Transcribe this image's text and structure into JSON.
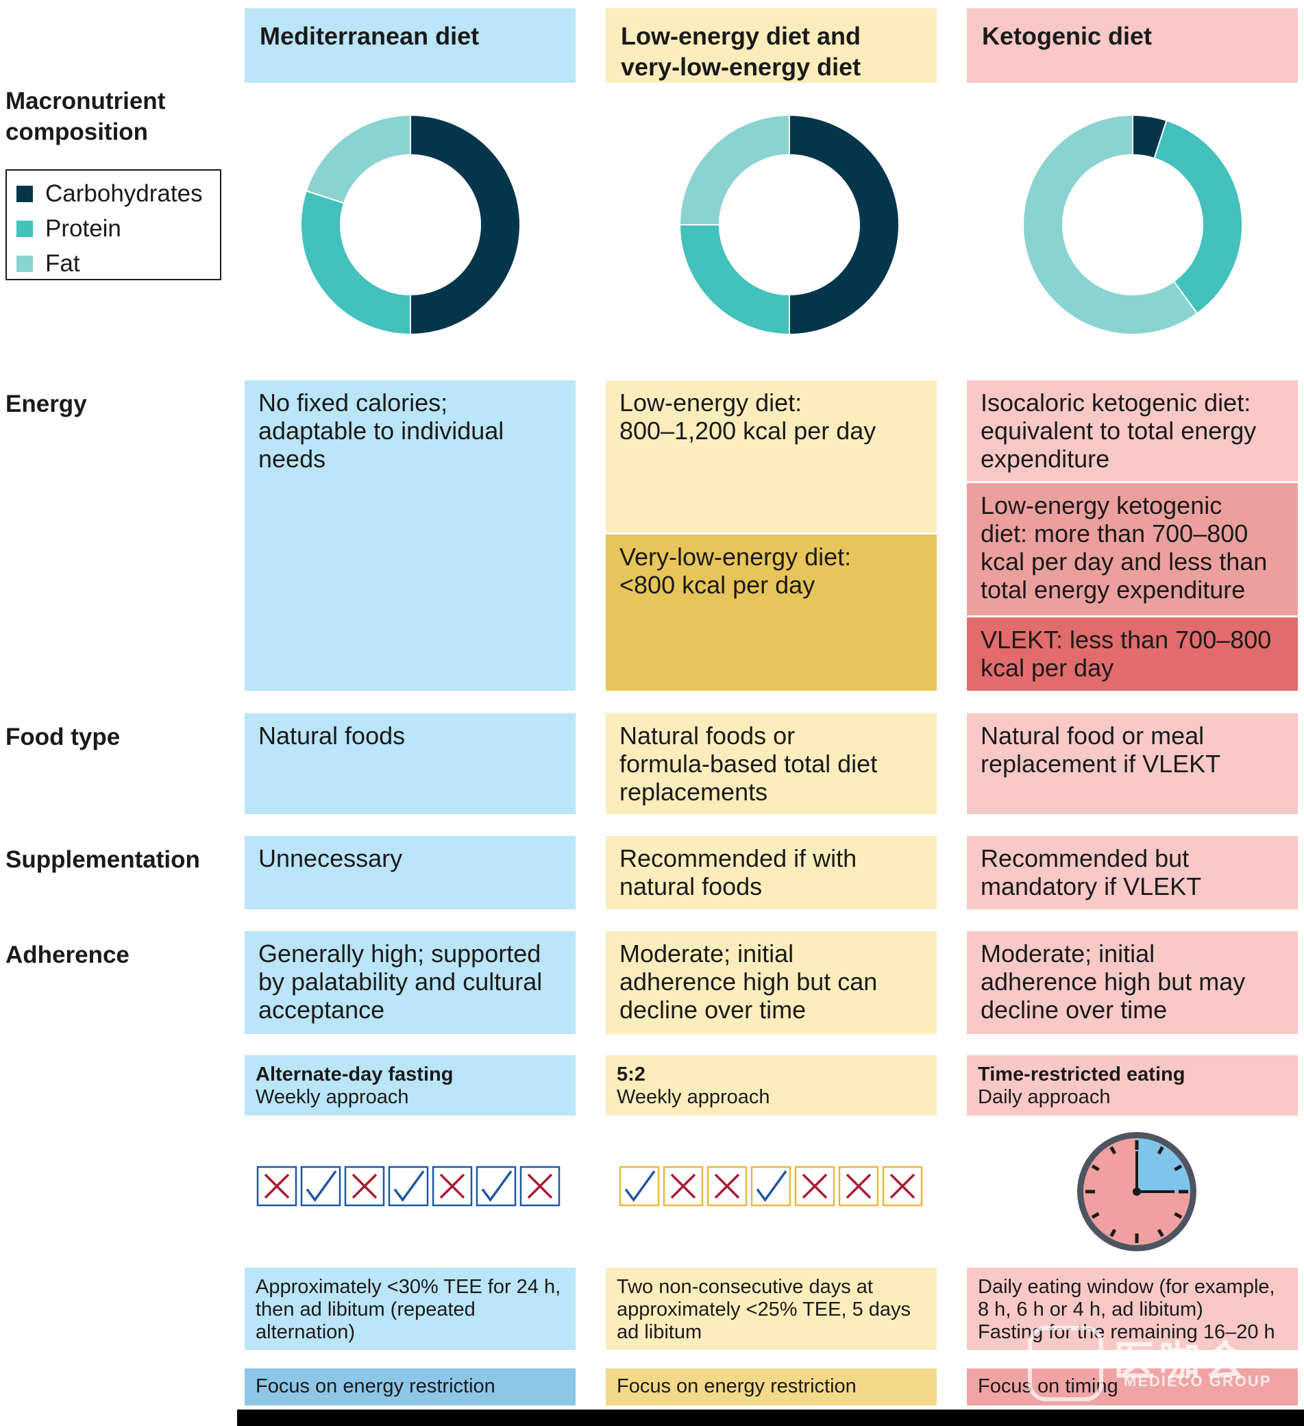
{
  "colors": {
    "carbohydrates": "#04364b",
    "protein": "#43c1bc",
    "fat": "#8bd3d1",
    "blue_bg": "#bbe5f8",
    "yellow_bg": "#fdedbd",
    "pink_bg": "#f8c9c7",
    "check": "#1f57a0",
    "cross": "#a81c32"
  },
  "diets": [
    {
      "name": "Mediterranean diet"
    },
    {
      "name_line1": "Low-energy diet and",
      "name_line2": "very-low-energy diet"
    },
    {
      "name": "Ketogenic diet"
    }
  ],
  "row_labels": {
    "macro_line1": "Macronutrient",
    "macro_line2": "composition",
    "energy": "Energy",
    "food_type": "Food type",
    "supplementation": "Supplementation",
    "adherence": "Adherence"
  },
  "legend": [
    {
      "label": "Carbohydrates",
      "color": "#04364b"
    },
    {
      "label": "Protein",
      "color": "#43c1bc"
    },
    {
      "label": "Fat",
      "color": "#8bd3d1"
    }
  ],
  "chart_data": {
    "type": "pie",
    "donut": true,
    "categories": [
      "Carbohydrates",
      "Protein",
      "Fat"
    ],
    "series": [
      {
        "name": "Mediterranean diet",
        "values": [
          50,
          30,
          20
        ]
      },
      {
        "name": "Low-energy diet and very-low-energy diet",
        "values": [
          50,
          25,
          25
        ]
      },
      {
        "name": "Ketogenic diet",
        "values": [
          5,
          35,
          60
        ]
      }
    ]
  },
  "energy": {
    "med": [
      "No fixed calories;",
      "adaptable to individual",
      "needs"
    ],
    "low": [
      "Low-energy diet:",
      "800–1,200 kcal per day"
    ],
    "vlow": [
      "Very-low-energy diet:",
      "<800 kcal per day"
    ],
    "keto_iso": [
      "Isocaloric ketogenic diet:",
      "equivalent to total energy",
      "expenditure"
    ],
    "keto_low": [
      "Low-energy ketogenic",
      "diet: more than 700–800",
      "kcal per day and less than",
      "total energy expenditure"
    ],
    "keto_vlekt": [
      "VLEKT: less than 700–800",
      "kcal per day"
    ]
  },
  "food_type": {
    "med": [
      "Natural foods"
    ],
    "low": [
      "Natural foods or",
      "formula-based total diet",
      "replacements"
    ],
    "keto": [
      "Natural food or meal",
      "replacement if VLEKT"
    ]
  },
  "supplementation": {
    "med": [
      "Unnecessary"
    ],
    "low": [
      "Recommended if with",
      "natural foods"
    ],
    "keto": [
      "Recommended but",
      "mandatory if VLEKT"
    ]
  },
  "adherence": {
    "med": [
      "Generally high; supported",
      "by palatability and cultural",
      "acceptance"
    ],
    "low": [
      "Moderate; initial",
      "adherence high but can",
      "decline over time"
    ],
    "keto": [
      "Moderate; initial",
      "adherence high but may",
      "decline over time"
    ]
  },
  "fasting": [
    {
      "title": "Alternate-day fasting",
      "subtitle": "Weekly approach",
      "days": [
        "x",
        "check",
        "x",
        "check",
        "x",
        "check",
        "x"
      ],
      "desc": [
        "Approximately <30% TEE for 24 h,",
        "then ad libitum (repeated",
        "alternation)"
      ],
      "focus": "Focus on energy restriction",
      "focus_color": "#8ec6e8",
      "box_color": "#1f57a0"
    },
    {
      "title": "5:2",
      "subtitle": "Weekly approach",
      "days": [
        "check",
        "x",
        "x",
        "check",
        "x",
        "x",
        "x"
      ],
      "desc": [
        "Two non-consecutive days at",
        "approximately <25% TEE, 5 days",
        "ad libitum"
      ],
      "focus": "Focus on energy restriction",
      "focus_color": "#f4d98a",
      "box_color": "#e9b83a"
    },
    {
      "title": "Time-restricted eating",
      "subtitle": "Daily approach",
      "desc": [
        "Daily eating window (for example,",
        "8 h, 6 h or 4 h, ad libitum)",
        "Fasting for the remaining 16–20 h"
      ],
      "focus": "Focus on timing",
      "focus_color": "#f0a4a4"
    }
  ],
  "watermark": {
    "cn": "医咖会",
    "en": "MEDIECO GROUP"
  }
}
